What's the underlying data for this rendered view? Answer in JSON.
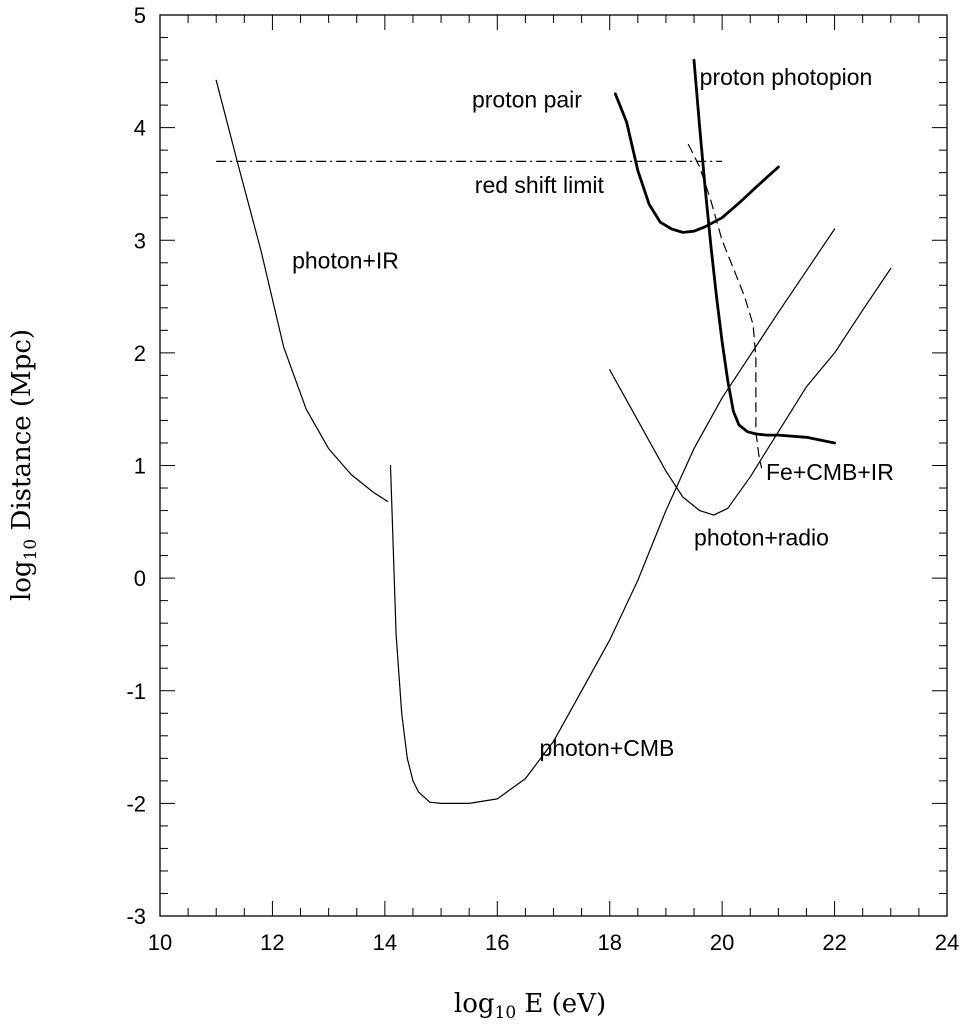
{
  "chart_data": {
    "type": "line",
    "title": "",
    "xlabel": "log₁₀ E (eV)",
    "ylabel": "log₁₀ Distance (Mpc)",
    "xlabel_parts": {
      "pre": "log",
      "sub": "10",
      "post": " E (eV)"
    },
    "ylabel_parts": {
      "pre": "log",
      "sub": "10",
      "post": " Distance (Mpc)"
    },
    "xlim": [
      10,
      24
    ],
    "ylim": [
      -3,
      5
    ],
    "x_ticks": [
      10,
      12,
      14,
      16,
      18,
      20,
      22,
      24
    ],
    "x_tick_labels": [
      "10",
      "12",
      "14",
      "16",
      "18",
      "20",
      "22",
      "24"
    ],
    "y_ticks": [
      -3,
      -2,
      -1,
      0,
      1,
      2,
      3,
      4,
      5
    ],
    "y_tick_labels": [
      "-3",
      "-2",
      "-1",
      "0",
      "1",
      "2",
      "3",
      "4",
      "5"
    ],
    "grid": false,
    "series": [
      {
        "name": "photon+IR",
        "style": "solid",
        "weight": "thin",
        "x": [
          11.0,
          11.4,
          11.8,
          12.2,
          12.6,
          13.0,
          13.4,
          13.8,
          14.05
        ],
        "y": [
          4.42,
          3.65,
          2.9,
          2.05,
          1.5,
          1.15,
          0.92,
          0.76,
          0.68
        ],
        "label_at": [
          12.35,
          2.75
        ]
      },
      {
        "name": "photon+CMB",
        "style": "solid",
        "weight": "thin",
        "x": [
          14.1,
          14.2,
          14.3,
          14.4,
          14.5,
          14.6,
          14.8,
          15.0,
          15.5,
          16.0,
          16.5,
          17.0,
          17.5,
          18.0,
          18.5,
          19.0,
          19.5,
          20.0,
          20.5,
          21.0,
          21.5,
          22.0
        ],
        "y": [
          1.0,
          -0.5,
          -1.2,
          -1.6,
          -1.8,
          -1.9,
          -1.99,
          -2.0,
          -2.0,
          -1.96,
          -1.78,
          -1.45,
          -1.0,
          -0.55,
          -0.02,
          0.6,
          1.15,
          1.6,
          1.98,
          2.36,
          2.73,
          3.1
        ],
        "label_at": [
          16.75,
          -1.58
        ]
      },
      {
        "name": "photon+radio",
        "style": "solid",
        "weight": "thin",
        "x": [
          18.0,
          18.5,
          19.0,
          19.3,
          19.6,
          19.85,
          20.1,
          20.5,
          21.0,
          21.5,
          22.0,
          22.5,
          23.0
        ],
        "y": [
          1.85,
          1.4,
          0.95,
          0.72,
          0.6,
          0.56,
          0.62,
          0.9,
          1.3,
          1.7,
          2.0,
          2.38,
          2.75
        ],
        "label_at": [
          19.5,
          0.29
        ]
      },
      {
        "name": "proton pair",
        "style": "solid",
        "weight": "thick",
        "x": [
          18.1,
          18.3,
          18.5,
          18.7,
          18.9,
          19.1,
          19.3,
          19.5,
          19.7,
          20.0,
          20.3,
          20.6,
          21.0
        ],
        "y": [
          4.3,
          4.05,
          3.62,
          3.32,
          3.16,
          3.1,
          3.07,
          3.08,
          3.12,
          3.2,
          3.33,
          3.47,
          3.65
        ],
        "label_at": [
          15.55,
          4.18
        ]
      },
      {
        "name": "proton photopion",
        "style": "solid",
        "weight": "thick",
        "x": [
          19.5,
          19.6,
          19.7,
          19.8,
          19.9,
          20.0,
          20.1,
          20.2,
          20.3,
          20.45,
          20.6,
          20.8,
          21.0,
          21.5,
          22.0
        ],
        "y": [
          4.6,
          4.0,
          3.45,
          2.95,
          2.5,
          2.1,
          1.75,
          1.48,
          1.36,
          1.3,
          1.28,
          1.27,
          1.27,
          1.25,
          1.2
        ],
        "label_at": [
          19.6,
          4.38
        ]
      },
      {
        "name": "Fe+CMB+IR",
        "style": "dashed",
        "weight": "thin",
        "x": [
          19.4,
          19.6,
          19.8,
          20.0,
          20.2,
          20.4,
          20.55,
          20.6,
          20.6,
          20.6,
          20.65,
          20.7
        ],
        "y": [
          3.85,
          3.65,
          3.35,
          3.0,
          2.75,
          2.5,
          2.25,
          1.95,
          1.6,
          1.3,
          1.1,
          0.98
        ],
        "label_at": [
          20.78,
          0.87
        ]
      },
      {
        "name": "red shift limit",
        "style": "dashdot",
        "weight": "thin",
        "x": [
          11.0,
          20.0
        ],
        "y": [
          3.7,
          3.7
        ],
        "label_at": [
          15.6,
          3.42
        ]
      }
    ]
  }
}
